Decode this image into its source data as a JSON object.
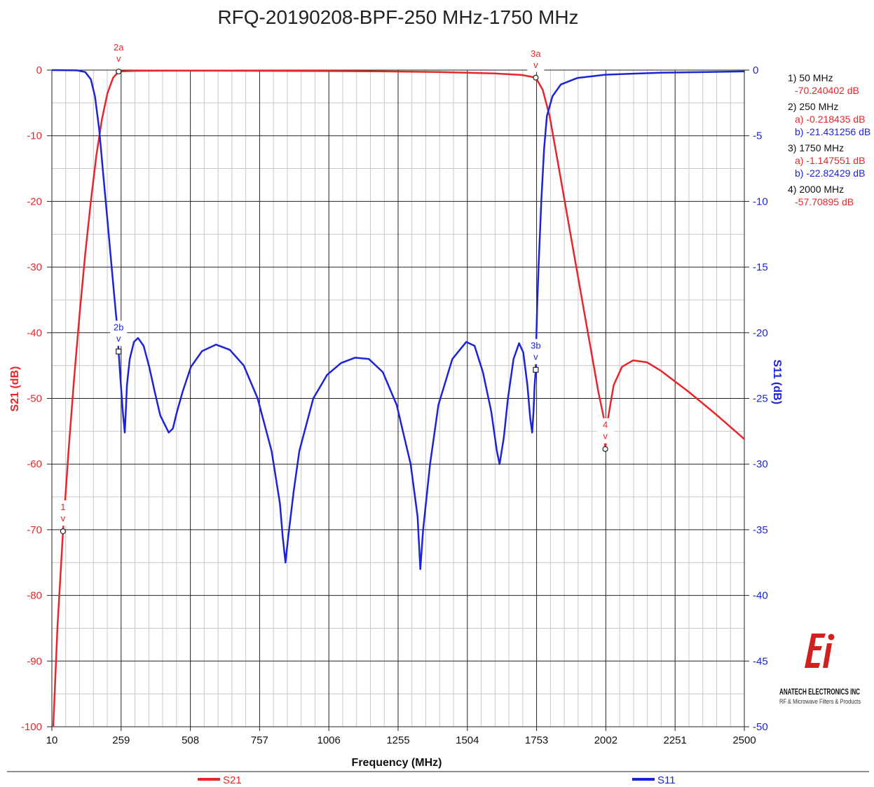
{
  "chart_data": {
    "type": "line",
    "title": "RFQ-20190208-BPF-250 MHz-1750 MHz",
    "xlabel": "Frequency (MHz)",
    "ylabel_left": "S21 (dB)",
    "ylabel_right": "S11 (dB)",
    "xlim": [
      10,
      2500
    ],
    "x_ticks": [
      "10",
      "259",
      "508",
      "757",
      "1006",
      "1255",
      "1504",
      "1753",
      "2002",
      "2251",
      "2500"
    ],
    "ylim_left": [
      -100,
      0
    ],
    "y_ticks_left": [
      "0",
      "-10",
      "-20",
      "-30",
      "-40",
      "-50",
      "-60",
      "-70",
      "-80",
      "-90",
      "-100"
    ],
    "ylim_right": [
      -50,
      0
    ],
    "y_ticks_right": [
      "0",
      "-5",
      "-10",
      "-15",
      "-20",
      "-25",
      "-30",
      "-35",
      "-40",
      "-45",
      "-50"
    ],
    "grid": true,
    "legend_position": "bottom",
    "series": [
      {
        "name": "S21",
        "axis": "left",
        "color": "#e8262a",
        "points": [
          [
            15,
            -100
          ],
          [
            30,
            -85
          ],
          [
            50,
            -70.24
          ],
          [
            70,
            -58
          ],
          [
            90,
            -47
          ],
          [
            110,
            -37
          ],
          [
            130,
            -28
          ],
          [
            150,
            -20
          ],
          [
            170,
            -13
          ],
          [
            190,
            -7.5
          ],
          [
            210,
            -3.5
          ],
          [
            230,
            -1.2
          ],
          [
            250,
            -0.218
          ],
          [
            300,
            -0.12
          ],
          [
            400,
            -0.1
          ],
          [
            600,
            -0.1
          ],
          [
            800,
            -0.12
          ],
          [
            1000,
            -0.15
          ],
          [
            1200,
            -0.2
          ],
          [
            1400,
            -0.3
          ],
          [
            1600,
            -0.5
          ],
          [
            1700,
            -0.75
          ],
          [
            1750,
            -1.148
          ],
          [
            1775,
            -3
          ],
          [
            1800,
            -7
          ],
          [
            1825,
            -13
          ],
          [
            1850,
            -19
          ],
          [
            1875,
            -25
          ],
          [
            1900,
            -31
          ],
          [
            1925,
            -37
          ],
          [
            1950,
            -43
          ],
          [
            1975,
            -49
          ],
          [
            1995,
            -53
          ],
          [
            2000,
            -57.71
          ],
          [
            2010,
            -53
          ],
          [
            2030,
            -48
          ],
          [
            2060,
            -45.2
          ],
          [
            2100,
            -44.2
          ],
          [
            2150,
            -44.5
          ],
          [
            2200,
            -45.8
          ],
          [
            2300,
            -49
          ],
          [
            2400,
            -52.5
          ],
          [
            2500,
            -56.2
          ]
        ]
      },
      {
        "name": "S11",
        "axis": "right",
        "color": "#1d24d8",
        "points": [
          [
            10,
            0
          ],
          [
            100,
            -0.02
          ],
          [
            130,
            -0.15
          ],
          [
            150,
            -0.7
          ],
          [
            165,
            -2
          ],
          [
            180,
            -4.5
          ],
          [
            195,
            -8
          ],
          [
            210,
            -11.5
          ],
          [
            225,
            -15
          ],
          [
            240,
            -18.5
          ],
          [
            245,
            -19.5
          ],
          [
            250,
            -21.43
          ],
          [
            255,
            -23
          ],
          [
            260,
            -24.5
          ],
          [
            265,
            -26
          ],
          [
            272,
            -27.6
          ],
          [
            276,
            -26
          ],
          [
            280,
            -24
          ],
          [
            290,
            -22
          ],
          [
            305,
            -20.7
          ],
          [
            320,
            -20.4
          ],
          [
            340,
            -21
          ],
          [
            360,
            -22.6
          ],
          [
            380,
            -24.5
          ],
          [
            400,
            -26.3
          ],
          [
            430,
            -27.6
          ],
          [
            445,
            -27.3
          ],
          [
            460,
            -26
          ],
          [
            480,
            -24.5
          ],
          [
            510,
            -22.6
          ],
          [
            550,
            -21.4
          ],
          [
            600,
            -20.9
          ],
          [
            650,
            -21.3
          ],
          [
            700,
            -22.5
          ],
          [
            750,
            -25
          ],
          [
            800,
            -29
          ],
          [
            830,
            -33
          ],
          [
            840,
            -35.5
          ],
          [
            850,
            -37.5
          ],
          [
            860,
            -35.5
          ],
          [
            880,
            -32
          ],
          [
            900,
            -29
          ],
          [
            950,
            -25
          ],
          [
            1000,
            -23.2
          ],
          [
            1050,
            -22.3
          ],
          [
            1100,
            -21.9
          ],
          [
            1150,
            -22
          ],
          [
            1200,
            -23
          ],
          [
            1250,
            -25.5
          ],
          [
            1300,
            -30
          ],
          [
            1325,
            -34
          ],
          [
            1335,
            -38
          ],
          [
            1345,
            -35
          ],
          [
            1370,
            -30
          ],
          [
            1400,
            -25.5
          ],
          [
            1450,
            -22
          ],
          [
            1500,
            -20.7
          ],
          [
            1530,
            -21
          ],
          [
            1560,
            -23
          ],
          [
            1590,
            -26
          ],
          [
            1610,
            -29
          ],
          [
            1620,
            -30
          ],
          [
            1635,
            -28
          ],
          [
            1650,
            -25
          ],
          [
            1670,
            -22
          ],
          [
            1690,
            -20.8
          ],
          [
            1705,
            -21.5
          ],
          [
            1720,
            -24
          ],
          [
            1730,
            -26.5
          ],
          [
            1737,
            -27.6
          ],
          [
            1742,
            -26
          ],
          [
            1746,
            -24
          ],
          [
            1750,
            -22.82
          ],
          [
            1752,
            -20.5
          ],
          [
            1755,
            -18
          ],
          [
            1760,
            -15
          ],
          [
            1770,
            -10
          ],
          [
            1780,
            -6
          ],
          [
            1790,
            -3.5
          ],
          [
            1810,
            -2
          ],
          [
            1840,
            -1.1
          ],
          [
            1900,
            -0.6
          ],
          [
            2000,
            -0.35
          ],
          [
            2200,
            -0.2
          ],
          [
            2500,
            -0.1
          ]
        ]
      }
    ],
    "markers": [
      {
        "id": "1",
        "series": "S21",
        "x": 50,
        "value": -70.240402
      },
      {
        "id": "2a",
        "series": "S21",
        "x": 250,
        "value": -0.218435
      },
      {
        "id": "2b",
        "series": "S11",
        "x": 250,
        "value": -21.431256
      },
      {
        "id": "3a",
        "series": "S21",
        "x": 1750,
        "value": -1.147551
      },
      {
        "id": "3b",
        "series": "S11",
        "x": 1750,
        "value": -22.82429
      },
      {
        "id": "4",
        "series": "S21",
        "x": 2000,
        "value": -57.70895
      }
    ],
    "marker_caret": "v",
    "readout": [
      {
        "header": "1) 50 MHz",
        "lines": [
          {
            "text": "-70.240402 dB",
            "color": "#e8262a"
          }
        ]
      },
      {
        "header": "2) 250 MHz",
        "lines": [
          {
            "text": "a) -0.218435 dB",
            "color": "#e8262a"
          },
          {
            "text": "b) -21.431256 dB",
            "color": "#1d24d8"
          }
        ]
      },
      {
        "header": "3) 1750 MHz",
        "lines": [
          {
            "text": "a) -1.147551 dB",
            "color": "#e8262a"
          },
          {
            "text": "b) -22.82429 dB",
            "color": "#1d24d8"
          }
        ]
      },
      {
        "header": "4) 2000 MHz",
        "lines": [
          {
            "text": "-57.70895 dB",
            "color": "#e8262a"
          }
        ]
      }
    ]
  },
  "logo": {
    "name": "ANATECH ELECTRONICS INC",
    "tagline": "RF & Microwave Filters & Products",
    "color": "#d0201f"
  }
}
